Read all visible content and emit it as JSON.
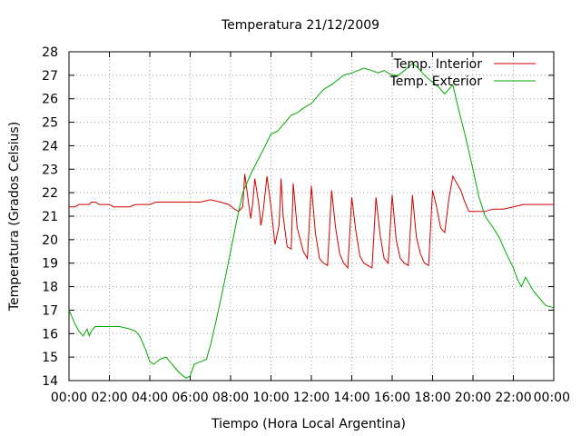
{
  "chart_data": {
    "type": "line",
    "title": "Temperatura 21/12/2009",
    "xlabel": "Tiempo (Hora Local Argentina)",
    "ylabel": "Temperatura (Grados Celsius)",
    "xlim": [
      0,
      24
    ],
    "ylim": [
      14,
      28
    ],
    "x_ticks": [
      "00:00",
      "02:00",
      "04:00",
      "06:00",
      "08:00",
      "10:00",
      "12:00",
      "14:00",
      "16:00",
      "18:00",
      "20:00",
      "22:00",
      "00:00"
    ],
    "y_ticks": [
      "14",
      "15",
      "16",
      "17",
      "18",
      "19",
      "20",
      "21",
      "22",
      "23",
      "24",
      "25",
      "26",
      "27",
      "28"
    ],
    "grid": true,
    "legend_position": "top-right",
    "series": [
      {
        "name": "Temp. Interior",
        "color": "#d00000",
        "x": [
          0,
          0.3,
          0.5,
          1.0,
          1.1,
          1.3,
          1.5,
          2.0,
          2.2,
          3.0,
          3.3,
          4.0,
          4.3,
          5.0,
          5.5,
          6.0,
          6.5,
          7.0,
          7.5,
          7.9,
          8.2,
          8.4,
          8.6,
          8.7,
          8.9,
          9.0,
          9.1,
          9.2,
          9.4,
          9.5,
          9.6,
          9.8,
          10.0,
          10.2,
          10.4,
          10.5,
          10.6,
          10.8,
          11.0,
          11.1,
          11.3,
          11.6,
          11.8,
          12.0,
          12.2,
          12.4,
          12.6,
          12.8,
          13.0,
          13.2,
          13.4,
          13.6,
          13.8,
          14.0,
          14.2,
          14.4,
          14.6,
          14.8,
          15.0,
          15.2,
          15.4,
          15.6,
          15.8,
          16.0,
          16.2,
          16.4,
          16.6,
          16.8,
          17.0,
          17.2,
          17.4,
          17.6,
          17.8,
          18.0,
          18.2,
          18.4,
          18.6,
          18.8,
          19.0,
          19.2,
          19.4,
          19.6,
          19.8,
          20.0,
          20.2,
          20.4,
          20.6,
          21.0,
          21.5,
          22.0,
          22.5,
          23.0,
          23.5,
          24.0
        ],
        "y": [
          21.4,
          21.4,
          21.5,
          21.5,
          21.6,
          21.6,
          21.5,
          21.5,
          21.4,
          21.4,
          21.5,
          21.5,
          21.6,
          21.6,
          21.6,
          21.6,
          21.6,
          21.7,
          21.6,
          21.5,
          21.3,
          21.2,
          21.4,
          22.8,
          21.5,
          20.9,
          21.6,
          22.6,
          21.5,
          20.6,
          21.1,
          22.7,
          21.4,
          19.8,
          20.6,
          22.6,
          21.0,
          19.7,
          19.6,
          22.4,
          20.5,
          19.5,
          19.2,
          22.3,
          20.3,
          19.2,
          19.0,
          18.9,
          22.1,
          20.5,
          19.4,
          19.0,
          18.8,
          21.8,
          20.4,
          19.3,
          19.0,
          18.9,
          18.8,
          21.8,
          20.2,
          19.2,
          19.0,
          21.9,
          20.0,
          19.2,
          19.0,
          18.9,
          21.9,
          20.1,
          19.4,
          19.0,
          18.9,
          22.1,
          21.4,
          20.5,
          20.3,
          21.7,
          22.7,
          22.4,
          22.1,
          21.6,
          21.2,
          21.2,
          21.2,
          21.2,
          21.2,
          21.3,
          21.3,
          21.4,
          21.5,
          21.5,
          21.5,
          21.5
        ]
      },
      {
        "name": "Temp. Exterior",
        "color": "#00aa00",
        "x": [
          0,
          0.3,
          0.5,
          0.7,
          0.9,
          1.0,
          1.1,
          1.3,
          1.5,
          2.0,
          2.5,
          3.0,
          3.3,
          3.5,
          3.8,
          4.0,
          4.2,
          4.5,
          4.8,
          5.0,
          5.2,
          5.5,
          5.8,
          6.0,
          6.2,
          6.5,
          6.8,
          7.0,
          7.3,
          7.6,
          8.0,
          8.3,
          8.6,
          9.0,
          9.3,
          9.6,
          10.0,
          10.3,
          10.6,
          11.0,
          11.3,
          11.6,
          12.0,
          12.3,
          12.6,
          13.0,
          13.3,
          13.6,
          14.0,
          14.3,
          14.6,
          15.0,
          15.3,
          15.6,
          16.0,
          16.3,
          16.6,
          17.0,
          17.3,
          17.6,
          18.0,
          18.3,
          18.6,
          19.0,
          19.3,
          19.6,
          20.0,
          20.3,
          20.6,
          21.0,
          21.3,
          21.6,
          22.0,
          22.2,
          22.4,
          22.6,
          23.0,
          23.3,
          23.6,
          24.0
        ],
        "y": [
          17.0,
          16.4,
          16.1,
          15.9,
          16.2,
          15.9,
          16.1,
          16.3,
          16.3,
          16.3,
          16.3,
          16.2,
          16.1,
          15.9,
          15.3,
          14.8,
          14.7,
          14.9,
          15.0,
          14.8,
          14.6,
          14.3,
          14.1,
          14.2,
          14.7,
          14.8,
          14.9,
          15.5,
          16.6,
          17.8,
          19.5,
          20.8,
          22.0,
          22.8,
          23.3,
          23.8,
          24.5,
          24.6,
          24.9,
          25.3,
          25.4,
          25.6,
          25.8,
          26.1,
          26.4,
          26.6,
          26.8,
          27.0,
          27.1,
          27.2,
          27.3,
          27.2,
          27.1,
          27.2,
          27.0,
          27.0,
          27.2,
          27.5,
          27.3,
          27.0,
          26.7,
          26.5,
          26.2,
          26.6,
          25.5,
          24.5,
          23.0,
          21.8,
          21.0,
          20.5,
          20.1,
          19.5,
          18.8,
          18.3,
          18.0,
          18.4,
          17.8,
          17.5,
          17.2,
          17.1
        ]
      }
    ]
  }
}
